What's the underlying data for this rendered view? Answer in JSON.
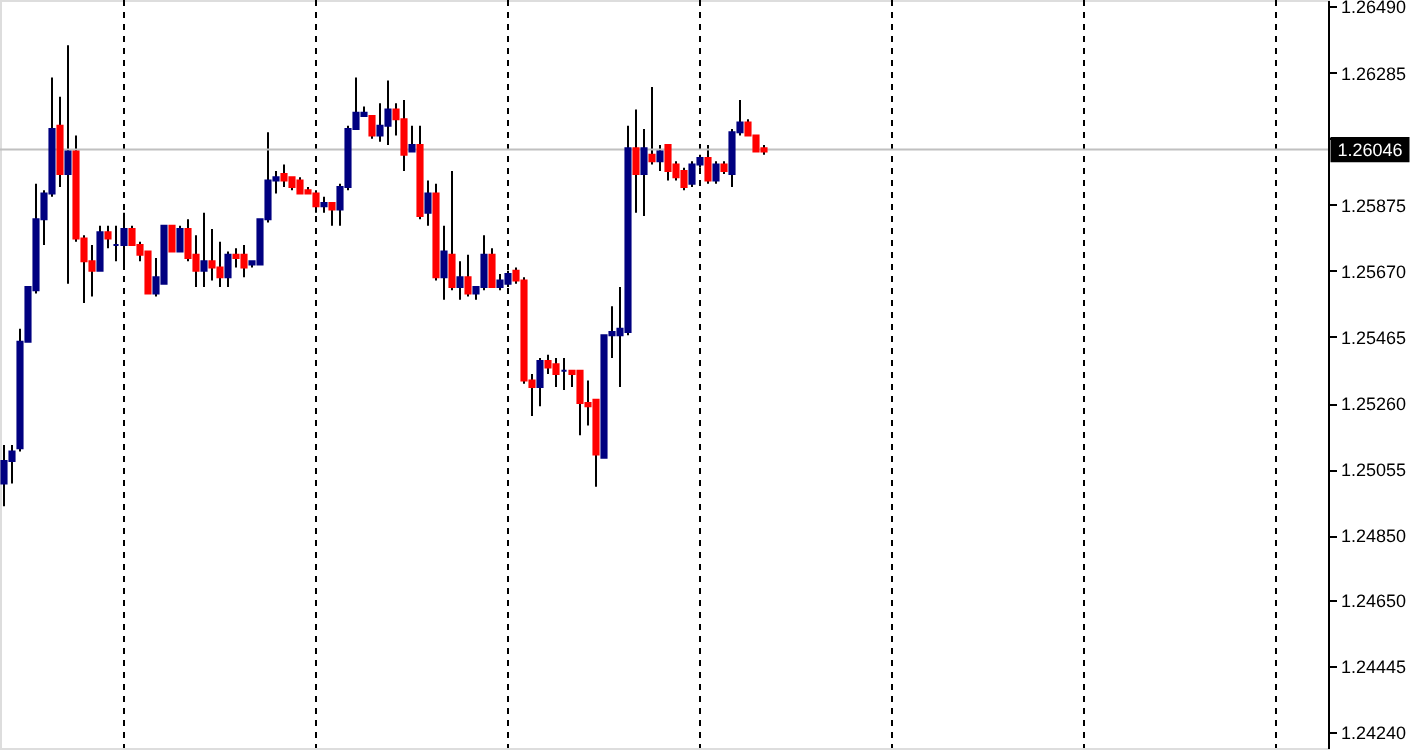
{
  "chart_data": {
    "type": "candlestick",
    "categories": [
      null,
      null,
      null,
      null,
      null,
      null,
      null,
      null,
      null,
      null,
      null,
      null,
      null,
      null,
      null,
      null,
      null,
      null,
      null,
      null,
      null,
      null,
      null,
      null,
      null,
      null,
      null,
      null,
      null,
      null,
      null,
      null,
      null,
      null,
      null,
      null,
      null,
      null,
      null,
      null,
      null,
      null,
      null,
      null,
      null,
      null,
      null,
      null,
      null,
      null,
      null,
      null,
      null,
      null,
      null,
      null,
      null,
      null,
      null,
      null,
      null,
      null,
      null,
      null,
      null,
      null,
      null,
      null,
      null,
      null,
      null,
      null,
      null,
      null,
      null,
      null,
      null,
      null,
      null,
      null,
      null,
      null,
      null,
      null,
      null,
      null,
      null,
      null,
      null,
      null,
      null,
      null,
      null,
      null,
      null,
      null,
      null,
      null,
      null,
      null,
      null,
      null,
      null,
      null,
      null,
      null,
      null,
      null,
      null,
      null,
      null,
      null,
      null,
      null,
      null,
      null,
      null,
      null,
      null,
      null,
      null,
      null,
      null,
      null,
      null,
      null,
      null,
      null,
      null,
      null,
      null,
      null,
      null,
      null,
      null,
      null,
      null,
      null,
      null,
      null,
      null,
      null,
      null,
      null,
      null,
      null,
      null,
      null,
      null,
      null,
      null,
      null,
      null,
      null,
      null,
      null,
      null,
      null,
      null,
      null,
      null,
      null,
      null,
      null,
      null,
      null
    ],
    "ohlc": [
      [
        1.2501,
        1.2513,
        1.2494,
        1.2508
      ],
      [
        1.2508,
        1.2513,
        1.2501,
        1.2511
      ],
      [
        1.2512,
        1.2549,
        1.2511,
        1.2545
      ],
      [
        1.2545,
        1.2562,
        1.2545,
        1.2562
      ],
      [
        1.2561,
        1.2594,
        1.256,
        1.2583
      ],
      [
        1.2583,
        1.2592,
        1.2575,
        1.2591
      ],
      [
        1.2591,
        1.2627,
        1.259,
        1.2611
      ],
      [
        1.2612,
        1.2621,
        1.2593,
        1.2597
      ],
      [
        1.2597,
        1.2637,
        1.2563,
        1.2604
      ],
      [
        1.2604,
        1.2609,
        1.2576,
        1.2577
      ],
      [
        1.2577,
        1.2578,
        1.2557,
        1.257
      ],
      [
        1.257,
        1.2575,
        1.2559,
        1.2567
      ],
      [
        1.2567,
        1.2581,
        1.2567,
        1.2579
      ],
      [
        1.2579,
        1.2581,
        1.2574,
        1.2577
      ],
      [
        1.2575,
        1.2581,
        1.257,
        1.2575
      ],
      [
        1.2575,
        1.2585,
        1.2569,
        1.258
      ],
      [
        1.258,
        1.2581,
        1.2575,
        1.2575
      ],
      [
        1.2575,
        1.2576,
        1.257,
        1.2572
      ],
      [
        1.2573,
        1.2573,
        1.256,
        1.256
      ],
      [
        1.256,
        1.2571,
        1.2559,
        1.2565
      ],
      [
        1.2563,
        1.2581,
        1.2563,
        1.2581
      ],
      [
        1.2581,
        1.2581,
        1.2573,
        1.2573
      ],
      [
        1.2573,
        1.2581,
        1.2573,
        1.258
      ],
      [
        1.258,
        1.2583,
        1.257,
        1.2571
      ],
      [
        1.2572,
        1.2578,
        1.2562,
        1.2567
      ],
      [
        1.2567,
        1.2585,
        1.2562,
        1.257
      ],
      [
        1.257,
        1.258,
        1.2564,
        1.2568
      ],
      [
        1.2568,
        1.2576,
        1.2562,
        1.2565
      ],
      [
        1.2565,
        1.2573,
        1.2562,
        1.2572
      ],
      [
        1.2572,
        1.2574,
        1.2568,
        1.2571
      ],
      [
        1.2572,
        1.2575,
        1.2565,
        1.2568
      ],
      [
        1.2569,
        1.257,
        1.2568,
        1.257
      ],
      [
        1.2569,
        1.2583,
        1.2569,
        1.2583
      ],
      [
        1.2583,
        1.261,
        1.2582,
        1.2595
      ],
      [
        1.2595,
        1.2598,
        1.2591,
        1.2596
      ],
      [
        1.2597,
        1.26,
        1.2593,
        1.2595
      ],
      [
        1.2596,
        1.2596,
        1.2592,
        1.2593
      ],
      [
        1.2595,
        1.2596,
        1.2591,
        1.2591
      ],
      [
        1.2592,
        1.2593,
        1.2591,
        1.2591
      ],
      [
        1.2591,
        1.2592,
        1.2585,
        1.2587
      ],
      [
        1.2587,
        1.259,
        1.2585,
        1.2588
      ],
      [
        1.2588,
        1.2588,
        1.2581,
        1.2586
      ],
      [
        1.2586,
        1.2594,
        1.2581,
        1.2593
      ],
      [
        1.2593,
        1.2612,
        1.2592,
        1.2611
      ],
      [
        1.2611,
        1.2627,
        1.2611,
        1.2616
      ],
      [
        1.2615,
        1.2618,
        1.2615,
        1.2616
      ],
      [
        1.2615,
        1.2615,
        1.2608,
        1.2609
      ],
      [
        1.2609,
        1.2619,
        1.2607,
        1.2612
      ],
      [
        1.2612,
        1.2626,
        1.2606,
        1.2617
      ],
      [
        1.2617,
        1.2619,
        1.2609,
        1.2614
      ],
      [
        1.2614,
        1.262,
        1.2598,
        1.2603
      ],
      [
        1.2604,
        1.2612,
        1.2604,
        1.2606
      ],
      [
        1.2606,
        1.2612,
        1.2583,
        1.2584
      ],
      [
        1.2585,
        1.2595,
        1.2581,
        1.2591
      ],
      [
        1.2591,
        1.2594,
        1.2564,
        1.2565
      ],
      [
        1.2565,
        1.2581,
        1.2558,
        1.2573
      ],
      [
        1.2572,
        1.2598,
        1.2561,
        1.2562
      ],
      [
        1.2562,
        1.257,
        1.2558,
        1.2565
      ],
      [
        1.2565,
        1.2572,
        1.2559,
        1.256
      ],
      [
        1.256,
        1.2562,
        1.2558,
        1.2562
      ],
      [
        1.2562,
        1.2578,
        1.2561,
        1.2572
      ],
      [
        1.2572,
        1.2574,
        1.2562,
        1.2562
      ],
      [
        1.2562,
        1.2566,
        1.2561,
        1.2564
      ],
      [
        1.2563,
        1.2567,
        1.2562,
        1.2566
      ],
      [
        1.2567,
        1.2568,
        1.2563,
        1.2564
      ],
      [
        1.2564,
        1.2565,
        1.2532,
        1.2533
      ],
      [
        1.2533,
        1.2535,
        1.2522,
        1.2531
      ],
      [
        1.2531,
        1.254,
        1.2525,
        1.2539
      ],
      [
        1.2539,
        1.2541,
        1.2535,
        1.2537
      ],
      [
        1.2538,
        1.254,
        1.2531,
        1.2535
      ],
      [
        1.2536,
        1.254,
        1.253,
        1.2536
      ],
      [
        1.2536,
        1.2536,
        1.2531,
        1.2535
      ],
      [
        1.2536,
        1.2536,
        1.2516,
        1.2526
      ],
      [
        1.2526,
        1.2533,
        1.2519,
        1.2525
      ],
      [
        1.2527,
        1.2527,
        1.25,
        1.251
      ],
      [
        1.2509,
        1.2547,
        1.2509,
        1.2547
      ],
      [
        1.2547,
        1.2556,
        1.254,
        1.2548
      ],
      [
        1.2547,
        1.2562,
        1.2531,
        1.2549
      ],
      [
        1.2548,
        1.2612,
        1.2547,
        1.2605
      ],
      [
        1.2605,
        1.2617,
        1.2585,
        1.2597
      ],
      [
        1.2597,
        1.2611,
        1.2584,
        1.2605
      ],
      [
        1.2603,
        1.2624,
        1.26,
        1.2601
      ],
      [
        1.2601,
        1.2606,
        1.2598,
        1.2604
      ],
      [
        1.2606,
        1.2606,
        1.2595,
        1.2598
      ],
      [
        1.26,
        1.2601,
        1.2595,
        1.2596
      ],
      [
        1.2598,
        1.2599,
        1.2592,
        1.2593
      ],
      [
        1.2594,
        1.2601,
        1.2593,
        1.26
      ],
      [
        1.26,
        1.2603,
        1.2599,
        1.2602
      ],
      [
        1.2602,
        1.2606,
        1.2594,
        1.2595
      ],
      [
        1.2595,
        1.2601,
        1.2594,
        1.26
      ],
      [
        1.26,
        1.2601,
        1.2597,
        1.2598
      ],
      [
        1.2597,
        1.2611,
        1.2593,
        1.261
      ],
      [
        1.261,
        1.262,
        1.2609,
        1.2613
      ],
      [
        1.2613,
        1.2614,
        1.2609,
        1.2609
      ],
      [
        1.2609,
        1.2609,
        1.2604,
        1.2604
      ],
      [
        1.2605,
        1.2606,
        1.2603,
        1.2604
      ],
      null,
      null,
      null,
      null,
      null,
      null,
      null,
      null,
      null,
      null,
      null,
      null,
      null,
      null,
      null,
      null,
      null,
      null,
      null,
      null,
      null,
      null,
      null,
      null,
      null,
      null,
      null,
      null,
      null,
      null,
      null,
      null,
      null,
      null,
      null,
      null,
      null,
      null,
      null,
      null,
      null,
      null,
      null,
      null,
      null,
      null,
      null,
      null,
      null,
      null,
      null,
      null,
      null,
      null,
      null,
      null,
      null,
      null,
      null,
      null,
      null,
      null,
      null,
      null,
      null,
      null,
      null,
      null,
      null,
      null
    ],
    "colors": [
      "#000080",
      "#000080",
      "#000080",
      "#000080",
      "#000080",
      "#000080",
      "#000080",
      "#ff0000",
      "#000080",
      "#ff0000",
      "#ff0000",
      "#ff0000",
      "#000080",
      "#ff0000",
      "#000080",
      "#000080",
      "#ff0000",
      "#ff0000",
      "#ff0000",
      "#000080",
      "#000080",
      "#ff0000",
      "#000080",
      "#ff0000",
      "#ff0000",
      "#000080",
      "#ff0000",
      "#ff0000",
      "#000080",
      "#ff0000",
      "#ff0000",
      "#000080",
      "#000080",
      "#000080",
      "#000080",
      "#ff0000",
      "#ff0000",
      "#ff0000",
      "#ff0000",
      "#ff0000",
      "#000080",
      "#ff0000",
      "#000080",
      "#000080",
      "#000080",
      "#000080",
      "#ff0000",
      "#000080",
      "#000080",
      "#ff0000",
      "#ff0000",
      "#000080",
      "#ff0000",
      "#000080",
      "#ff0000",
      "#000080",
      "#ff0000",
      "#000080",
      "#ff0000",
      "#000080",
      "#000080",
      "#ff0000",
      "#000080",
      "#000080",
      "#ff0000",
      "#ff0000",
      "#ff0000",
      "#000080",
      "#ff0000",
      "#ff0000",
      "#000080",
      "#ff0000",
      "#ff0000",
      "#ff0000",
      "#ff0000",
      "#000080",
      "#000080",
      "#000080",
      "#000080",
      "#ff0000",
      "#000080",
      "#ff0000",
      "#000080",
      "#ff0000",
      "#ff0000",
      "#ff0000",
      "#000080",
      "#000080",
      "#ff0000",
      "#000080",
      "#ff0000",
      "#000080",
      "#000080",
      "#ff0000",
      "#ff0000",
      "#ff0000",
      null,
      null,
      null,
      null,
      null,
      null,
      null,
      null,
      null,
      null,
      null,
      null,
      null,
      null,
      null,
      null,
      null,
      null,
      null,
      null,
      null,
      null,
      null,
      null,
      null,
      null,
      null,
      null,
      null,
      null,
      null,
      null,
      null,
      null,
      null,
      null,
      null,
      null,
      null,
      null,
      null,
      null,
      null,
      null,
      null,
      null,
      null,
      null,
      null,
      null,
      null,
      null,
      null,
      null,
      null,
      null,
      null,
      null,
      null,
      null,
      null,
      null,
      null,
      null,
      null,
      null,
      null,
      null,
      null,
      null
    ],
    "ylim": [
      1.2419,
      1.2651
    ],
    "yticks": [
      {
        "value": 1.2649,
        "label": "1.26490"
      },
      {
        "value": 1.26285,
        "label": "1.26285"
      },
      {
        "value": 1.2608,
        "label": null
      },
      {
        "value": 1.25875,
        "label": "1.25875"
      },
      {
        "value": 1.2567,
        "label": "1.25670"
      },
      {
        "value": 1.25465,
        "label": "1.25465"
      },
      {
        "value": 1.2526,
        "label": "1.25260"
      },
      {
        "value": 1.25055,
        "label": "1.25055"
      },
      {
        "value": 1.2485,
        "label": "1.24850"
      },
      {
        "value": 1.2465,
        "label": "1.24650"
      },
      {
        "value": 1.24445,
        "label": "1.24445"
      },
      {
        "value": 1.2424,
        "label": "1.24240"
      }
    ],
    "ref_lines": [
      {
        "axis": "y",
        "value": 1.26046,
        "label": "1.26046",
        "color": "#c0c0c0"
      }
    ],
    "grid": false,
    "tick_labels": "y"
  }
}
